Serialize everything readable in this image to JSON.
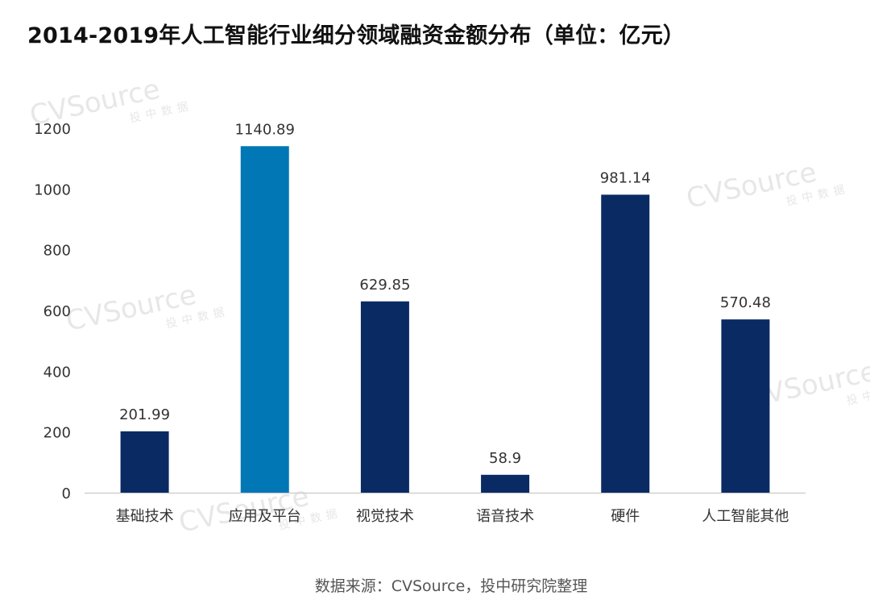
{
  "title": "2014-2019年人工智能行业细分领域融资金额分布（单位：亿元）",
  "source_note": "数据来源：CVSource，投中研究院整理",
  "watermark": {
    "brand": "CVSource",
    "sub": "投中数据"
  },
  "colors": {
    "bar": "#0a2a63",
    "highlight": "#0277b5",
    "axis": "#d0d0d0",
    "tick_text": "#333333",
    "label_text": "#333333"
  },
  "chart_data": {
    "type": "bar",
    "title": "2014-2019年人工智能行业细分领域融资金额分布（单位：亿元）",
    "xlabel": "",
    "ylabel": "",
    "categories": [
      "基础技术",
      "应用及平台",
      "视觉技术",
      "语音技术",
      "硬件",
      "人工智能其他"
    ],
    "values": [
      201.99,
      1140.89,
      629.85,
      58.9,
      981.14,
      570.48
    ],
    "value_labels": [
      "201.99",
      "1140.89",
      "629.85",
      "58.9",
      "981.14",
      "570.48"
    ],
    "highlight_index": 1,
    "ylim": [
      0,
      1200
    ],
    "yticks": [
      "0",
      "200",
      "400",
      "600",
      "800",
      "1000",
      "1200"
    ],
    "grid": false,
    "legend": "none"
  }
}
